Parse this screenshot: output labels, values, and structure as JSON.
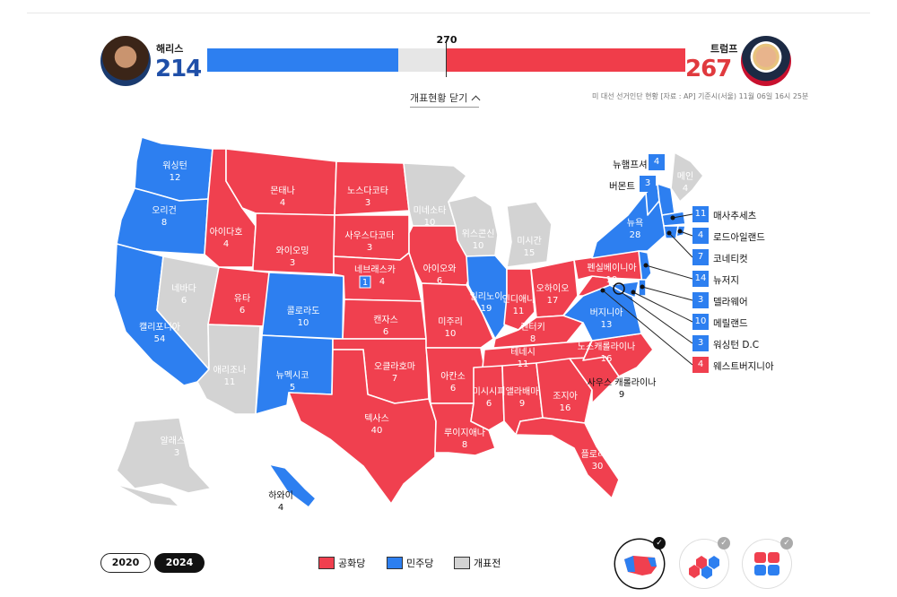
{
  "header": {
    "harris": {
      "name": "해리스",
      "votes": "214"
    },
    "trump": {
      "name": "트럼프",
      "votes": "267"
    },
    "threshold": "270",
    "dem_fraction": 0.4,
    "rep_fraction": 0.5,
    "toggle_label": "개표현황 닫기",
    "source": "미 대선 선거인단 현황 [자료 : AP] 기준시(서울) 11월 06일 16시 25분"
  },
  "states": [
    {
      "id": "WA",
      "name": "워싱턴",
      "ev": "12",
      "party": "D"
    },
    {
      "id": "OR",
      "name": "오리건",
      "ev": "8",
      "party": "D"
    },
    {
      "id": "CA",
      "name": "캘리포니아",
      "ev": "54",
      "party": "D"
    },
    {
      "id": "NV",
      "name": "네바다",
      "ev": "6",
      "party": "G"
    },
    {
      "id": "ID",
      "name": "아이다호",
      "ev": "4",
      "party": "R"
    },
    {
      "id": "MT",
      "name": "몬태나",
      "ev": "4",
      "party": "R"
    },
    {
      "id": "WY",
      "name": "와이오밍",
      "ev": "3",
      "party": "R"
    },
    {
      "id": "UT",
      "name": "유타",
      "ev": "6",
      "party": "R"
    },
    {
      "id": "AZ",
      "name": "애리조나",
      "ev": "11",
      "party": "G"
    },
    {
      "id": "CO",
      "name": "콜로라도",
      "ev": "10",
      "party": "D"
    },
    {
      "id": "NM",
      "name": "뉴멕시코",
      "ev": "5",
      "party": "D"
    },
    {
      "id": "ND",
      "name": "노스다코타",
      "ev": "3",
      "party": "R"
    },
    {
      "id": "SD",
      "name": "사우스다코타",
      "ev": "3",
      "party": "R"
    },
    {
      "id": "NE",
      "name": "네브래스카",
      "ev": "4",
      "party": "R",
      "split": "1"
    },
    {
      "id": "KS",
      "name": "캔자스",
      "ev": "6",
      "party": "R"
    },
    {
      "id": "OK",
      "name": "오클라호마",
      "ev": "7",
      "party": "R"
    },
    {
      "id": "TX",
      "name": "텍사스",
      "ev": "40",
      "party": "R"
    },
    {
      "id": "MN",
      "name": "미네소타",
      "ev": "10",
      "party": "G"
    },
    {
      "id": "IA",
      "name": "아이오와",
      "ev": "6",
      "party": "R"
    },
    {
      "id": "MO",
      "name": "미주리",
      "ev": "10",
      "party": "R"
    },
    {
      "id": "AR",
      "name": "아칸소",
      "ev": "6",
      "party": "R"
    },
    {
      "id": "LA",
      "name": "루이지애나",
      "ev": "8",
      "party": "R"
    },
    {
      "id": "WI",
      "name": "위스콘신",
      "ev": "10",
      "party": "G"
    },
    {
      "id": "IL",
      "name": "일리노이",
      "ev": "19",
      "party": "D"
    },
    {
      "id": "MI",
      "name": "미시간",
      "ev": "15",
      "party": "G"
    },
    {
      "id": "IN",
      "name": "인디애나",
      "ev": "11",
      "party": "R"
    },
    {
      "id": "OH",
      "name": "오하이오",
      "ev": "17",
      "party": "R"
    },
    {
      "id": "KY",
      "name": "켄터키",
      "ev": "8",
      "party": "R"
    },
    {
      "id": "TN",
      "name": "테네시",
      "ev": "11",
      "party": "R"
    },
    {
      "id": "MS",
      "name": "미시시피",
      "ev": "6",
      "party": "R"
    },
    {
      "id": "AL",
      "name": "앨라배마",
      "ev": "9",
      "party": "R"
    },
    {
      "id": "GA",
      "name": "조지아",
      "ev": "16",
      "party": "R"
    },
    {
      "id": "FL",
      "name": "플로리다",
      "ev": "30",
      "party": "R"
    },
    {
      "id": "SC",
      "name": "사우스 캐롤라이나",
      "ev": "9",
      "party": "R"
    },
    {
      "id": "NC",
      "name": "노스캐롤라이나",
      "ev": "16",
      "party": "R"
    },
    {
      "id": "VA",
      "name": "버지니아",
      "ev": "13",
      "party": "D"
    },
    {
      "id": "WV",
      "name": "",
      "ev": "",
      "party": "R"
    },
    {
      "id": "PA",
      "name": "펜실베이니아",
      "ev": "19",
      "party": "R"
    },
    {
      "id": "NY",
      "name": "뉴욕",
      "ev": "28",
      "party": "D"
    },
    {
      "id": "ME",
      "name": "메인",
      "ev": "4",
      "party": "G"
    },
    {
      "id": "AK",
      "name": "알래스카",
      "ev": "3",
      "party": "G"
    },
    {
      "id": "HI",
      "name": "하와이",
      "ev": "4",
      "party": "D"
    }
  ],
  "ne_states": [
    {
      "name": "뉴햄프셔",
      "ev": "4",
      "party": "D"
    },
    {
      "name": "버몬트",
      "ev": "3",
      "party": "D"
    }
  ],
  "side_states": [
    {
      "name": "매사추세츠",
      "ev": "11",
      "party": "D"
    },
    {
      "name": "로드아일랜드",
      "ev": "4",
      "party": "D"
    },
    {
      "name": "코네티컷",
      "ev": "7",
      "party": "D"
    },
    {
      "name": "뉴저지",
      "ev": "14",
      "party": "D"
    },
    {
      "name": "델라웨어",
      "ev": "3",
      "party": "D"
    },
    {
      "name": "메릴랜드",
      "ev": "10",
      "party": "D"
    },
    {
      "name": "워싱턴 D.C",
      "ev": "3",
      "party": "D"
    },
    {
      "name": "웨스트버지니아",
      "ev": "4",
      "party": "R"
    }
  ],
  "years": [
    "2020",
    "2024"
  ],
  "legend": [
    "공화당",
    "민주당",
    "개표전"
  ],
  "colors": {
    "rep": "#f0404f",
    "dem": "#2d7ff0",
    "pending": "#d3d3d3"
  },
  "views": [
    "state-map-icon",
    "hex-map-icon",
    "square-map-icon"
  ]
}
